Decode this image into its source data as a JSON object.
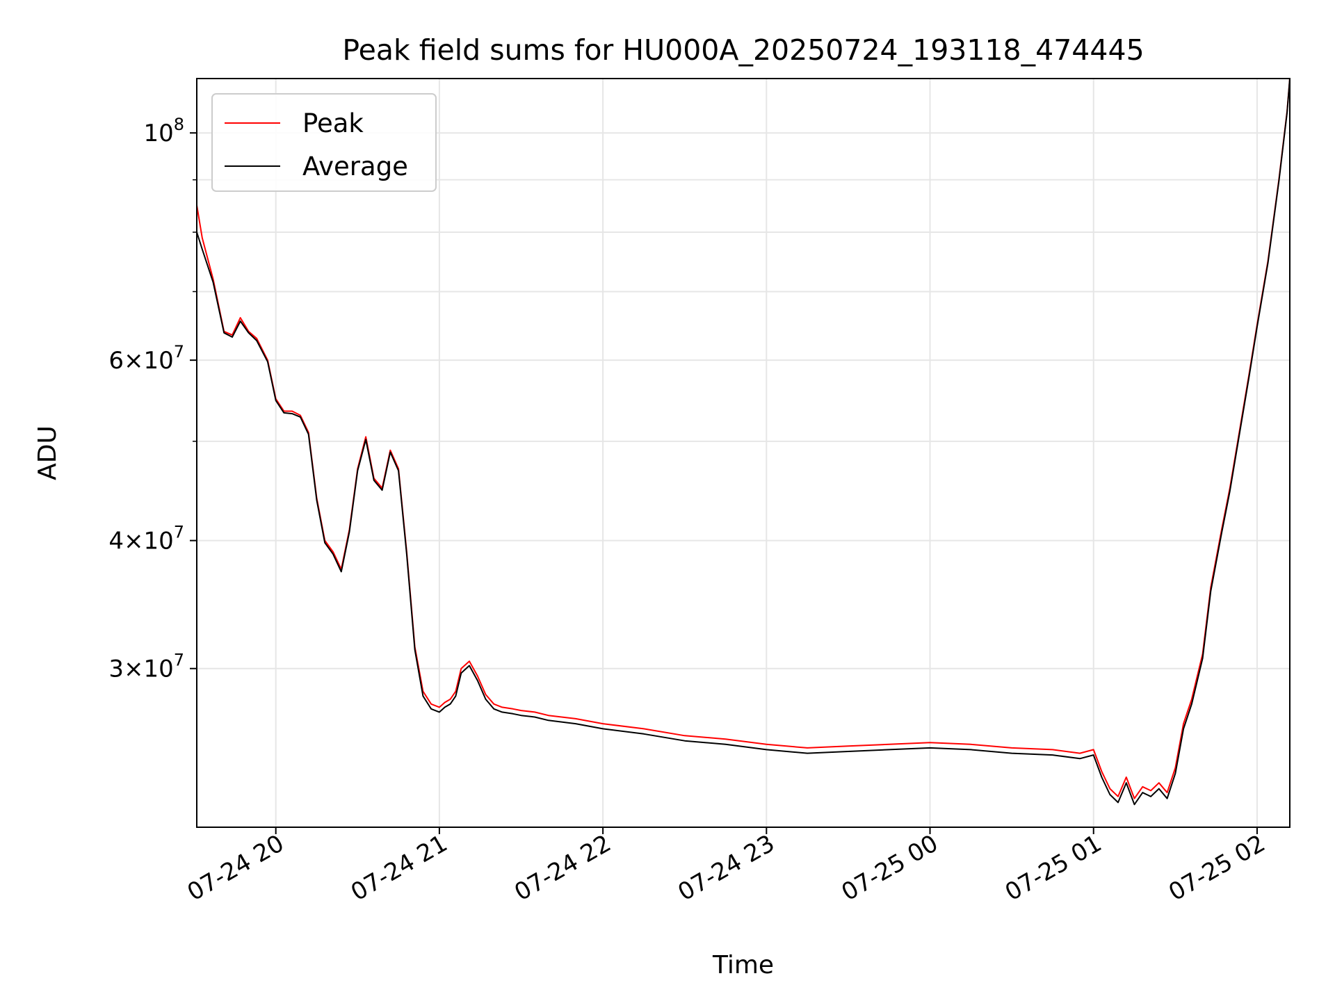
{
  "chart_data": {
    "type": "line",
    "title": "Peak field sums for HU000A_20250724_193118_474445",
    "xlabel": "Time",
    "ylabel": "ADU",
    "yscale": "log",
    "ylim": [
      21000000,
      113000000
    ],
    "xlim": [
      "2025-07-24 19:31",
      "2025-07-25 02:12"
    ],
    "x_ticks": [
      {
        "t": "2025-07-24 20:00",
        "label": "07-24 20"
      },
      {
        "t": "2025-07-24 21:00",
        "label": "07-24 21"
      },
      {
        "t": "2025-07-24 22:00",
        "label": "07-24 22"
      },
      {
        "t": "2025-07-24 23:00",
        "label": "07-24 23"
      },
      {
        "t": "2025-07-25 00:00",
        "label": "07-25 00"
      },
      {
        "t": "2025-07-25 01:00",
        "label": "07-25 01"
      },
      {
        "t": "2025-07-25 02:00",
        "label": "07-25 02"
      }
    ],
    "y_major_ticks": [
      {
        "value": 30000000,
        "mant": "3",
        "exp": "7"
      },
      {
        "value": 40000000,
        "mant": "4",
        "exp": "7"
      },
      {
        "value": 60000000,
        "mant": "6",
        "exp": "7"
      },
      {
        "value": 100000000,
        "mant": "",
        "exp": "8"
      }
    ],
    "y_minor_ticks": [
      50000000,
      70000000,
      80000000,
      90000000
    ],
    "grid": true,
    "legend": {
      "placement": "top-left"
    },
    "series": [
      {
        "name": "Peak",
        "color": "#ff0000",
        "x": [
          "2025-07-24 19:31",
          "2025-07-24 19:33",
          "2025-07-24 19:37",
          "2025-07-24 19:41",
          "2025-07-24 19:44",
          "2025-07-24 19:47",
          "2025-07-24 19:50",
          "2025-07-24 19:53",
          "2025-07-24 19:57",
          "2025-07-24 20:00",
          "2025-07-24 20:03",
          "2025-07-24 20:06",
          "2025-07-24 20:09",
          "2025-07-24 20:12",
          "2025-07-24 20:15",
          "2025-07-24 20:18",
          "2025-07-24 20:21",
          "2025-07-24 20:24",
          "2025-07-24 20:27",
          "2025-07-24 20:30",
          "2025-07-24 20:33",
          "2025-07-24 20:36",
          "2025-07-24 20:39",
          "2025-07-24 20:42",
          "2025-07-24 20:45",
          "2025-07-24 20:48",
          "2025-07-24 20:51",
          "2025-07-24 20:54",
          "2025-07-24 20:57",
          "2025-07-24 21:00",
          "2025-07-24 21:02",
          "2025-07-24 21:04",
          "2025-07-24 21:06",
          "2025-07-24 21:08",
          "2025-07-24 21:11",
          "2025-07-24 21:14",
          "2025-07-24 21:17",
          "2025-07-24 21:20",
          "2025-07-24 21:23",
          "2025-07-24 21:27",
          "2025-07-24 21:30",
          "2025-07-24 21:35",
          "2025-07-24 21:40",
          "2025-07-24 21:50",
          "2025-07-24 22:00",
          "2025-07-24 22:15",
          "2025-07-24 22:30",
          "2025-07-24 22:45",
          "2025-07-24 23:00",
          "2025-07-24 23:15",
          "2025-07-24 23:30",
          "2025-07-24 23:45",
          "2025-07-25 00:00",
          "2025-07-25 00:15",
          "2025-07-25 00:30",
          "2025-07-25 00:45",
          "2025-07-25 00:55",
          "2025-07-25 01:00",
          "2025-07-25 01:03",
          "2025-07-25 01:06",
          "2025-07-25 01:09",
          "2025-07-25 01:12",
          "2025-07-25 01:15",
          "2025-07-25 01:18",
          "2025-07-25 01:21",
          "2025-07-25 01:24",
          "2025-07-25 01:27",
          "2025-07-25 01:30",
          "2025-07-25 01:33",
          "2025-07-25 01:36",
          "2025-07-25 01:40",
          "2025-07-25 01:43",
          "2025-07-25 01:47",
          "2025-07-25 01:50",
          "2025-07-25 01:54",
          "2025-07-25 01:57",
          "2025-07-25 02:00",
          "2025-07-25 02:04",
          "2025-07-25 02:08",
          "2025-07-25 02:11",
          "2025-07-25 02:12"
        ],
        "y": [
          85000000,
          79000000,
          72000000,
          64000000,
          63500000,
          66000000,
          64000000,
          63000000,
          60000000,
          55000000,
          53500000,
          53500000,
          53000000,
          51000000,
          44000000,
          40000000,
          39000000,
          37500000,
          41000000,
          47000000,
          50500000,
          46000000,
          45000000,
          49000000,
          47000000,
          39000000,
          31500000,
          28500000,
          27700000,
          27500000,
          27800000,
          28000000,
          28500000,
          30000000,
          30500000,
          29500000,
          28300000,
          27700000,
          27500000,
          27400000,
          27300000,
          27200000,
          27000000,
          26800000,
          26500000,
          26200000,
          25800000,
          25600000,
          25300000,
          25100000,
          25200000,
          25300000,
          25400000,
          25300000,
          25100000,
          25000000,
          24800000,
          25000000,
          23800000,
          22900000,
          22500000,
          23500000,
          22400000,
          23000000,
          22800000,
          23200000,
          22700000,
          24000000,
          26500000,
          28000000,
          31000000,
          36000000,
          41000000,
          45000000,
          52000000,
          58000000,
          65000000,
          75000000,
          90000000,
          105000000,
          113000000
        ]
      },
      {
        "name": "Average",
        "color": "#000000",
        "x": [
          "2025-07-24 19:31",
          "2025-07-24 19:33",
          "2025-07-24 19:37",
          "2025-07-24 19:41",
          "2025-07-24 19:44",
          "2025-07-24 19:47",
          "2025-07-24 19:50",
          "2025-07-24 19:53",
          "2025-07-24 19:57",
          "2025-07-24 20:00",
          "2025-07-24 20:03",
          "2025-07-24 20:06",
          "2025-07-24 20:09",
          "2025-07-24 20:12",
          "2025-07-24 20:15",
          "2025-07-24 20:18",
          "2025-07-24 20:21",
          "2025-07-24 20:24",
          "2025-07-24 20:27",
          "2025-07-24 20:30",
          "2025-07-24 20:33",
          "2025-07-24 20:36",
          "2025-07-24 20:39",
          "2025-07-24 20:42",
          "2025-07-24 20:45",
          "2025-07-24 20:48",
          "2025-07-24 20:51",
          "2025-07-24 20:54",
          "2025-07-24 20:57",
          "2025-07-24 21:00",
          "2025-07-24 21:02",
          "2025-07-24 21:04",
          "2025-07-24 21:06",
          "2025-07-24 21:08",
          "2025-07-24 21:11",
          "2025-07-24 21:14",
          "2025-07-24 21:17",
          "2025-07-24 21:20",
          "2025-07-24 21:23",
          "2025-07-24 21:27",
          "2025-07-24 21:30",
          "2025-07-24 21:35",
          "2025-07-24 21:40",
          "2025-07-24 21:50",
          "2025-07-24 22:00",
          "2025-07-24 22:15",
          "2025-07-24 22:30",
          "2025-07-24 22:45",
          "2025-07-24 23:00",
          "2025-07-24 23:15",
          "2025-07-24 23:30",
          "2025-07-24 23:45",
          "2025-07-25 00:00",
          "2025-07-25 00:15",
          "2025-07-25 00:30",
          "2025-07-25 00:45",
          "2025-07-25 00:55",
          "2025-07-25 01:00",
          "2025-07-25 01:03",
          "2025-07-25 01:06",
          "2025-07-25 01:09",
          "2025-07-25 01:12",
          "2025-07-25 01:15",
          "2025-07-25 01:18",
          "2025-07-25 01:21",
          "2025-07-25 01:24",
          "2025-07-25 01:27",
          "2025-07-25 01:30",
          "2025-07-25 01:33",
          "2025-07-25 01:36",
          "2025-07-25 01:40",
          "2025-07-25 01:43",
          "2025-07-25 01:47",
          "2025-07-25 01:50",
          "2025-07-25 01:54",
          "2025-07-25 01:57",
          "2025-07-25 02:00",
          "2025-07-25 02:04",
          "2025-07-25 02:08",
          "2025-07-25 02:11",
          "2025-07-25 02:12"
        ],
        "y": [
          80000000,
          77000000,
          71500000,
          63800000,
          63200000,
          65500000,
          63800000,
          62700000,
          59800000,
          54800000,
          53300000,
          53200000,
          52800000,
          50800000,
          43800000,
          39800000,
          38800000,
          37300000,
          40800000,
          46800000,
          50200000,
          45800000,
          44800000,
          48800000,
          46800000,
          38800000,
          31300000,
          28200000,
          27400000,
          27200000,
          27500000,
          27700000,
          28200000,
          29700000,
          30200000,
          29200000,
          28000000,
          27400000,
          27200000,
          27100000,
          27000000,
          26900000,
          26700000,
          26500000,
          26200000,
          25900000,
          25500000,
          25300000,
          25000000,
          24800000,
          24900000,
          25000000,
          25100000,
          25000000,
          24800000,
          24700000,
          24500000,
          24700000,
          23500000,
          22600000,
          22200000,
          23200000,
          22100000,
          22700000,
          22500000,
          22900000,
          22400000,
          23700000,
          26200000,
          27700000,
          30700000,
          35700000,
          40700000,
          44700000,
          51700000,
          57700000,
          64700000,
          74700000,
          89700000,
          104700000,
          113000000
        ]
      }
    ]
  }
}
